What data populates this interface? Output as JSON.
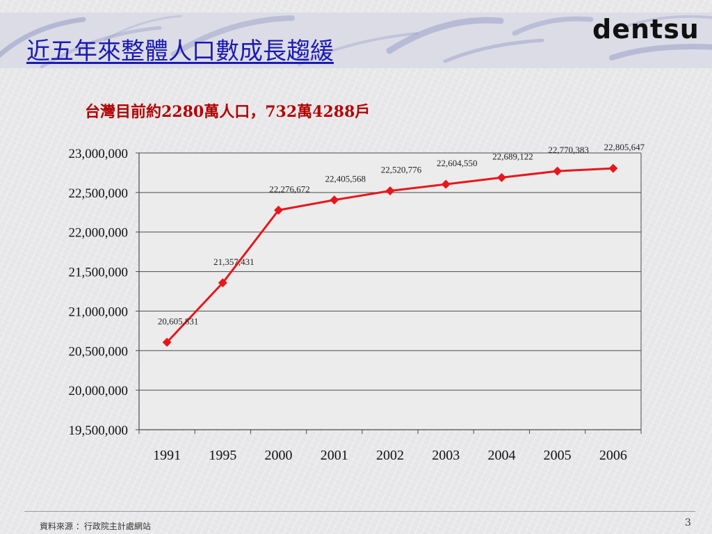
{
  "slide": {
    "title": "近五年來整體人口數成長趨緩",
    "logo_text": "dentsu",
    "subtitle": "台灣目前約2280萬人口，732萬4288戶",
    "source": "資料來源 ：行政院主計處網站",
    "page_number": "3"
  },
  "colors": {
    "title": "#1a1ab4",
    "subtitle": "#b40000",
    "series_line": "#e8161b",
    "marker": "#e8161b",
    "grid": "#4a4a4a",
    "plot_bg": "#ececec"
  },
  "chart_data": {
    "type": "line",
    "title": "",
    "xlabel": "",
    "ylabel": "",
    "categories": [
      "1991",
      "1995",
      "2000",
      "2001",
      "2002",
      "2003",
      "2004",
      "2005",
      "2006"
    ],
    "series": [
      {
        "values": [
          20605831,
          21357431,
          22276672,
          22405568,
          22520776,
          22604550,
          22689122,
          22770383,
          22805647
        ],
        "data_labels": [
          "20,605,831",
          "21,357,431",
          "22,276,672",
          "22,405,568",
          "22,520,776",
          "22,604,550",
          "22,689,122",
          "22,770,383",
          "22,805,647"
        ]
      }
    ],
    "ylim": [
      19500000,
      23000000
    ],
    "yticks": [
      19500000,
      20000000,
      20500000,
      21000000,
      21500000,
      22000000,
      22500000,
      23000000
    ],
    "ytick_labels": [
      "19,500,000",
      "20,000,000",
      "20,500,000",
      "21,000,000",
      "21,500,000",
      "22,000,000",
      "22,500,000",
      "23,000,000"
    ],
    "grid": true,
    "marker": "diamond",
    "legend": "none"
  }
}
